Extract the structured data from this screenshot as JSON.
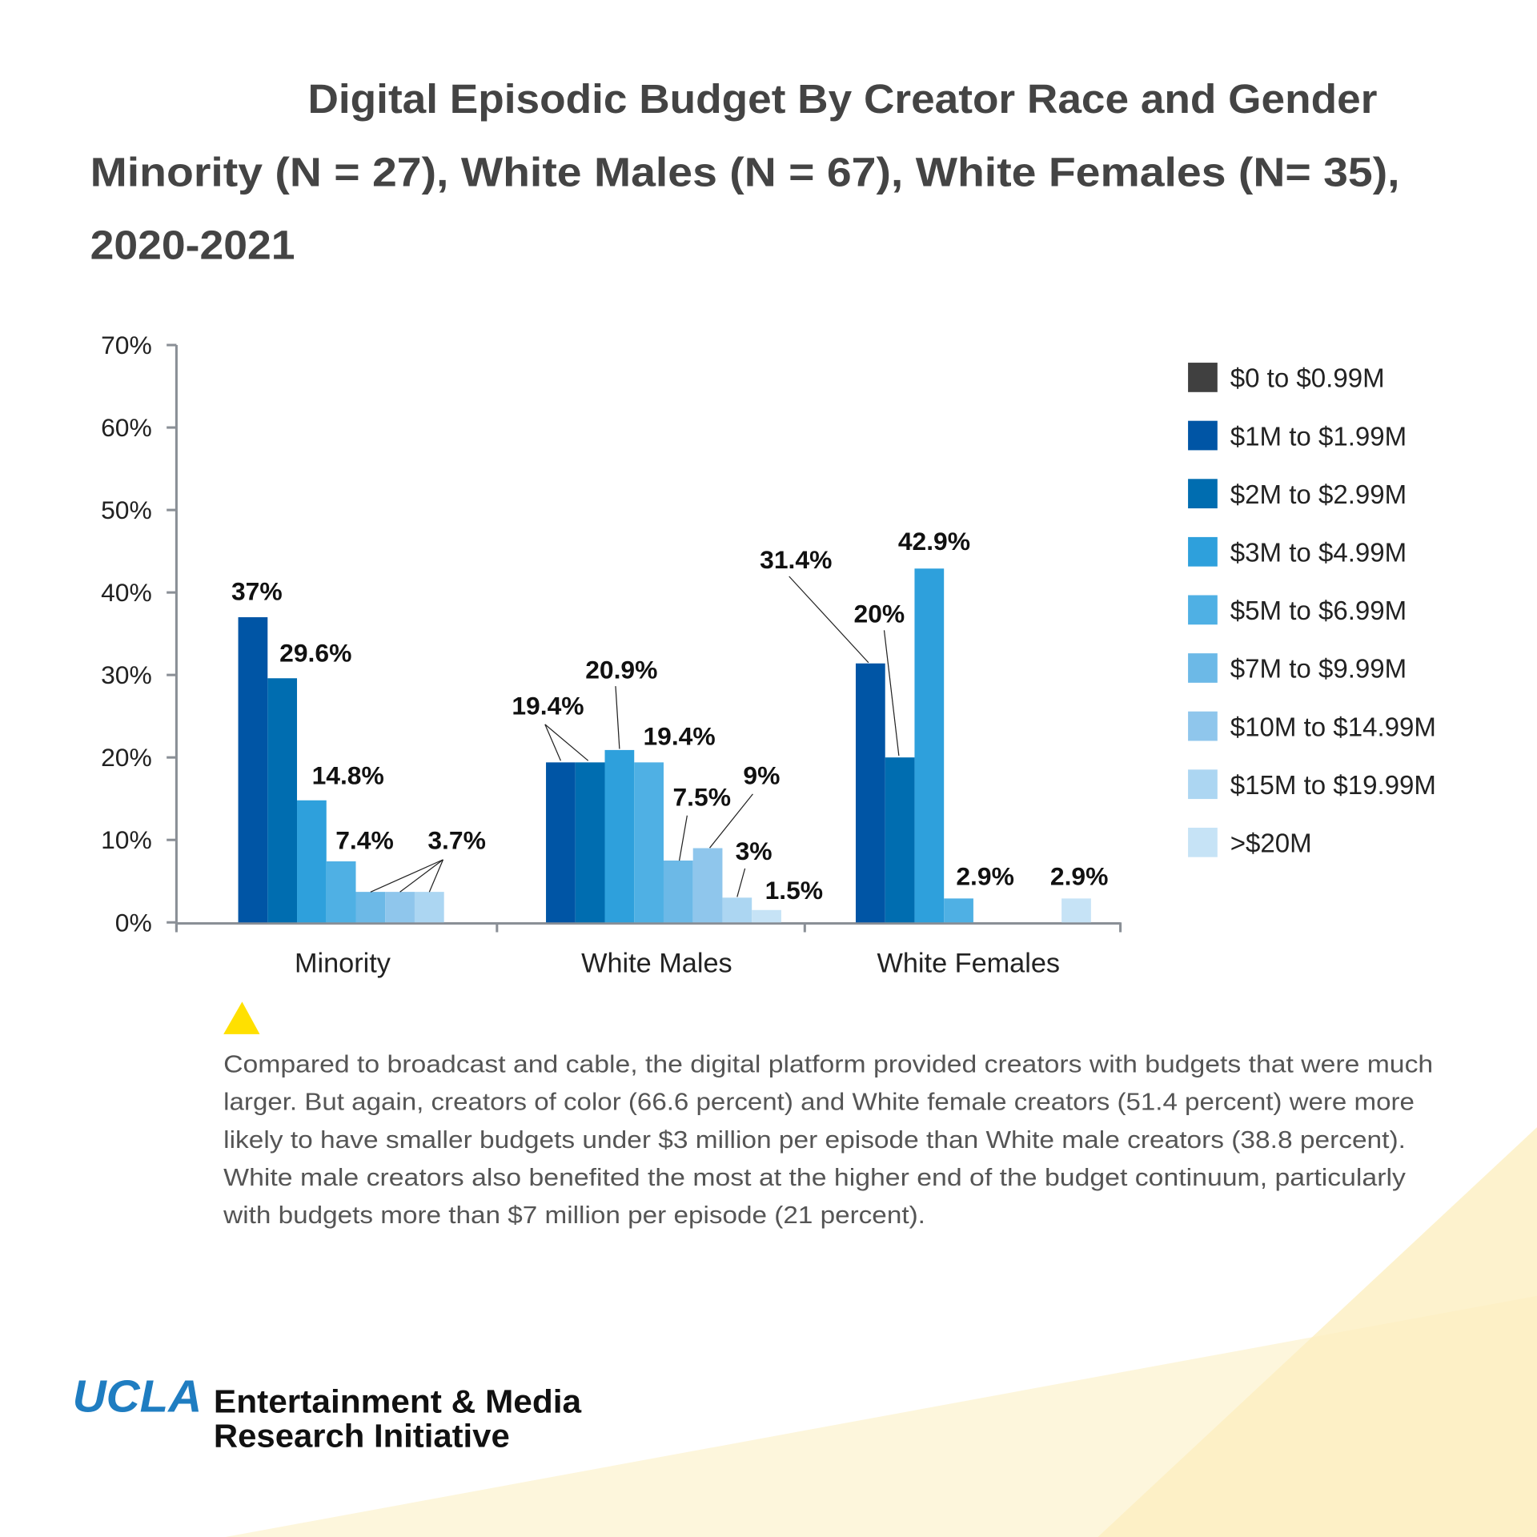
{
  "title": {
    "line1": "Digital Episodic Budget By Creator Race and Gender",
    "line2": "Minority (N = 27), White Males (N = 67), White Females (N= 35),",
    "line3": "2020-2021"
  },
  "chart_data": {
    "type": "bar",
    "title": "Digital Episodic Budget By Creator Race and Gender Minority (N = 27), White Males (N = 67), White Females (N= 35), 2020-2021",
    "categories": [
      "Minority",
      "White Males",
      "White Females"
    ],
    "ylim": [
      0,
      70
    ],
    "yticks": [
      "0%",
      "10%",
      "20%",
      "30%",
      "40%",
      "50%",
      "60%",
      "70%"
    ],
    "grid": false,
    "legend_position": "right",
    "series": [
      {
        "name": "$0 to $0.99M",
        "color": "#404040",
        "values": [
          0,
          0,
          0
        ],
        "labels": [
          "",
          "",
          ""
        ]
      },
      {
        "name": "$1M to $1.99M",
        "color": "#0055a5",
        "values": [
          37,
          19.4,
          31.4
        ],
        "labels": [
          "37%",
          "19.4%",
          "31.4%"
        ]
      },
      {
        "name": "$2M to $2.99M",
        "color": "#006db0",
        "values": [
          29.6,
          19.4,
          20
        ],
        "labels": [
          "29.6%",
          "",
          "20%"
        ]
      },
      {
        "name": "$3M to $4.99M",
        "color": "#2ea0dc",
        "values": [
          14.8,
          20.9,
          42.9
        ],
        "labels": [
          "14.8%",
          "20.9%",
          "42.9%"
        ]
      },
      {
        "name": "$5M to $6.99M",
        "color": "#4fb0e4",
        "values": [
          7.4,
          19.4,
          2.9
        ],
        "labels": [
          "7.4%",
          "19.4%",
          "2.9%"
        ]
      },
      {
        "name": "$7M to $9.99M",
        "color": "#6cb9e7",
        "values": [
          3.7,
          7.5,
          0
        ],
        "labels": [
          "3.7%",
          "7.5%",
          ""
        ]
      },
      {
        "name": "$10M to $14.99M",
        "color": "#8fc6ec",
        "values": [
          3.7,
          9,
          0
        ],
        "labels": [
          "",
          "9%",
          ""
        ]
      },
      {
        "name": "$15M to $19.99M",
        "color": "#acd6f2",
        "values": [
          3.7,
          3,
          0
        ],
        "labels": [
          "",
          "3%",
          ""
        ]
      },
      {
        "name": ">$20M",
        "color": "#c6e3f6",
        "values": [
          0,
          1.5,
          2.9
        ],
        "labels": [
          "",
          "1.5%",
          "2.9%"
        ]
      }
    ]
  },
  "callout": {
    "marker_color": "#ffe000",
    "lines": [
      "Compared to broadcast and cable, the digital platform provided creators with budgets that were much",
      "larger. But again, creators of color (66.6 percent) and White female creators (51.4 percent) were more",
      "likely to have smaller budgets under $3 million per episode than White male creators (38.8 percent).",
      "White male creators also benefited the most at the higher end of the budget continuum, particularly",
      "with budgets more than $7 million per episode (21 percent)."
    ]
  },
  "logo": {
    "ucla": "UCLA",
    "line1": "Entertainment & Media",
    "line2": "Research Initiative"
  }
}
